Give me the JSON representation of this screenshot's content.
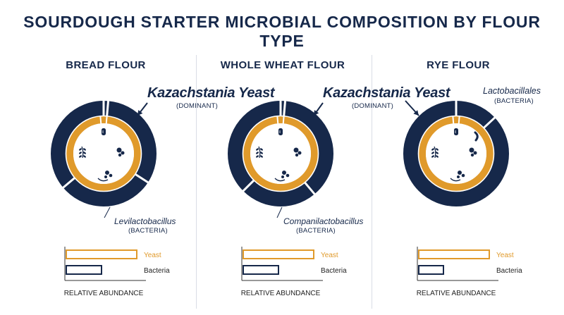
{
  "title": "SOURDOUGH STARTER MICROBIAL COMPOSITION BY FLOUR TYPE",
  "colors": {
    "navy": "#16284a",
    "orange": "#e09a2b",
    "white": "#ffffff"
  },
  "icons": [
    "cylinder-cell-icon",
    "cocci-cluster-icon",
    "grain-sprig-icon",
    "budding-yeast-icon"
  ],
  "chart_data": [
    {
      "type": "pie",
      "title": "BREAD FLOUR",
      "annotations": {
        "primary": "Kazachstania Yeast",
        "primary_sub": "(DOMINANT)",
        "secondary": "Levilactobacillus",
        "secondary_sub": "(BACTERIA)"
      },
      "bars": {
        "categories": [
          "Yeast",
          "Bacteria"
        ],
        "values": [
          100,
          50
        ],
        "xlabel": "RELATIVE ABUNDANCE"
      }
    },
    {
      "type": "pie",
      "title": "WHOLE WHEAT FLOUR",
      "annotations": {
        "primary": "Kazachstania Yeast",
        "primary_sub": "(DOMINANT)",
        "secondary": "Companilactobacillus",
        "secondary_sub": "(BACTERIA)"
      },
      "bars": {
        "categories": [
          "Yeast",
          "Bacteria"
        ],
        "values": [
          100,
          50
        ],
        "xlabel": "RELATIVE ABUNDANCE"
      }
    },
    {
      "type": "pie",
      "title": "RYE FLOUR",
      "annotations": {
        "primary": "Lactobacillales",
        "primary_sub": "(BACTERIA)"
      },
      "bars": {
        "categories": [
          "Yeast",
          "Bacteria"
        ],
        "values": [
          100,
          35
        ],
        "xlabel": "RELATIVE ABUNDANCE"
      }
    }
  ]
}
